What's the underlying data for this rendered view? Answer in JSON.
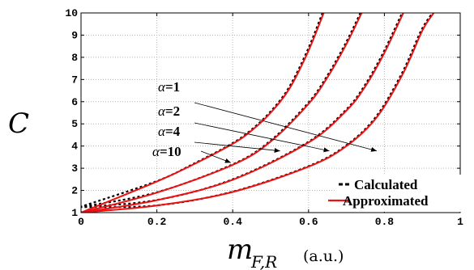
{
  "chart_data": {
    "type": "line",
    "ylabel": "C",
    "xlabel": {
      "main": "m",
      "sub": "F,R",
      "unit": "(a.u.)"
    },
    "xlim": [
      0,
      1
    ],
    "ylim": [
      1,
      10
    ],
    "xticks": [
      "0",
      "0.2",
      "0.4",
      "0.6",
      "0.8",
      "1"
    ],
    "yticks": [
      "1",
      "2",
      "3",
      "4",
      "5",
      "6",
      "7",
      "8",
      "9",
      "10"
    ],
    "grid": true,
    "legend": {
      "position": "bottom-right",
      "entries": [
        {
          "label": "Calculated",
          "style": "dashed",
          "color": "#000000"
        },
        {
          "label": "Approximated",
          "style": "solid",
          "color": "#ee1111"
        }
      ]
    },
    "series": [
      {
        "alpha": 1,
        "x": [
          0,
          0.2,
          0.4,
          0.6,
          0.7,
          0.78,
          0.85,
          0.9,
          0.93
        ],
        "y": [
          1,
          1.32,
          1.93,
          3.07,
          4.0,
          5.3,
          7.3,
          9.2,
          10
        ]
      },
      {
        "alpha": 2,
        "x": [
          0,
          0.2,
          0.4,
          0.6,
          0.7,
          0.75,
          0.8,
          0.85
        ],
        "y": [
          1,
          1.56,
          2.48,
          4.16,
          5.6,
          6.7,
          8.2,
          10
        ]
      },
      {
        "alpha": 4,
        "x": [
          0,
          0.2,
          0.4,
          0.5,
          0.6,
          0.65,
          0.7,
          0.74
        ],
        "y": [
          1,
          1.9,
          3.15,
          4.2,
          5.9,
          7.1,
          8.6,
          10
        ]
      },
      {
        "alpha": 10,
        "x": [
          0,
          0.2,
          0.3,
          0.4,
          0.45,
          0.5,
          0.55,
          0.6,
          0.64
        ],
        "y": [
          1,
          2.4,
          3.2,
          4.1,
          4.7,
          5.5,
          6.6,
          8.3,
          10
        ]
      }
    ],
    "annotations": [
      {
        "greek": "α",
        "text": "=1",
        "target": [
          0.78,
          3.78
        ]
      },
      {
        "greek": "α",
        "text": "=2",
        "target": [
          0.655,
          3.78
        ]
      },
      {
        "greek": "α",
        "text": "=4",
        "target": [
          0.525,
          3.78
        ]
      },
      {
        "greek": "α",
        "text": "=10",
        "target": [
          0.395,
          3.25
        ]
      }
    ]
  }
}
